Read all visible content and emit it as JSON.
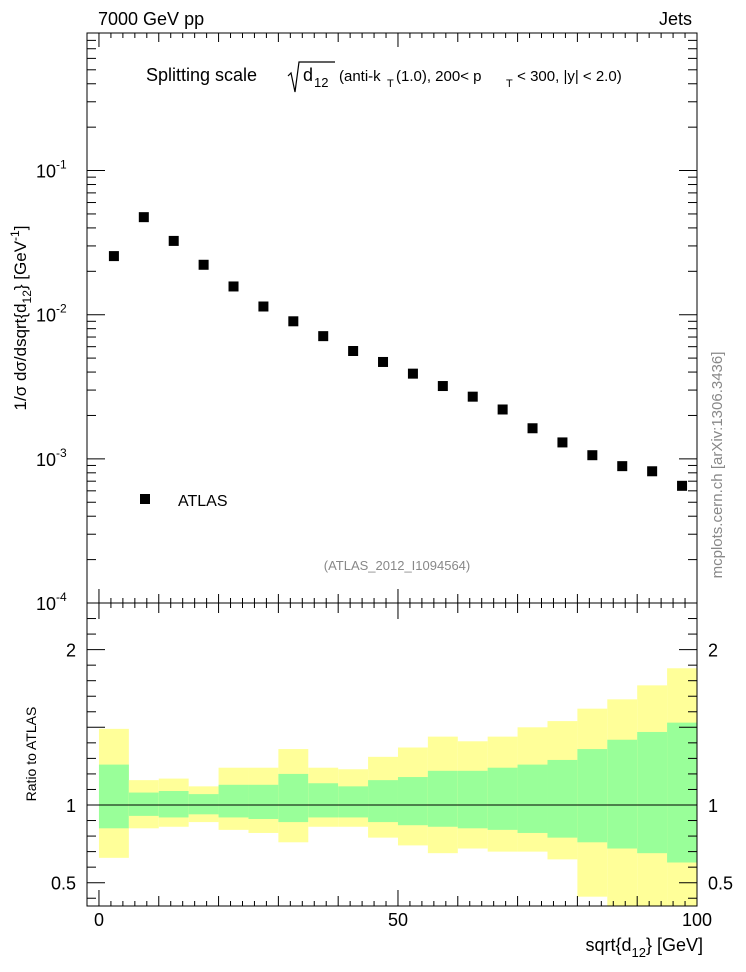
{
  "header": {
    "left": "7000 GeV pp",
    "right": "Jets"
  },
  "side_label": "mcplots.cern.ch [arXiv:1306.3436]",
  "chart_data": [
    {
      "type": "scatter",
      "title": {
        "main": "Splitting scale",
        "root_sub": "12",
        "rest": "(anti-k",
        "k_sub": "T",
        "rest2": "(1.0), 200< p",
        "p_sub": "T",
        "rest3": " < 300, |y| < 2.0)"
      },
      "ylabel": "1/σ dσ/dsqrt{d_12} [GeV^-1]",
      "yscale": "log",
      "ylim": [
        0.0001,
        0.9
      ],
      "xlim": [
        -2,
        100
      ],
      "ytick_labels": [
        {
          "base": "10",
          "exp": "-1",
          "value": 0.1
        },
        {
          "base": "10",
          "exp": "-2",
          "value": 0.01
        },
        {
          "base": "10",
          "exp": "-3",
          "value": 0.001
        },
        {
          "base": "10",
          "exp": "-4",
          "value": 0.0001
        }
      ],
      "legend": {
        "label": "ATLAS",
        "position": "lower-left"
      },
      "watermark": "(ATLAS_2012_I1094564)",
      "series": [
        {
          "name": "ATLAS",
          "marker": "square",
          "color": "#000000",
          "x": [
            2.5,
            7.5,
            12.5,
            17.5,
            22.5,
            27.5,
            32.5,
            37.5,
            42.5,
            47.5,
            52.5,
            57.5,
            62.5,
            67.5,
            72.5,
            77.5,
            82.5,
            87.5,
            92.5,
            97.5
          ],
          "y": [
            0.0255,
            0.0475,
            0.0325,
            0.0222,
            0.0157,
            0.0114,
            0.009,
            0.0071,
            0.0056,
            0.0047,
            0.0039,
            0.0032,
            0.0027,
            0.0022,
            0.00163,
            0.0013,
            0.00106,
            0.00089,
            0.00082,
            0.00065
          ]
        }
      ]
    },
    {
      "type": "area",
      "ylabel": "Ratio to ATLAS",
      "xlabel": "sqrt{d_12} [GeV]",
      "xlim": [
        -2,
        100
      ],
      "ylim": [
        0.35,
        2.3
      ],
      "xtick_labels": [
        {
          "label": "0",
          "value": 0
        },
        {
          "label": "50",
          "value": 50
        },
        {
          "label": "100",
          "value": 100
        }
      ],
      "ytick_labels": [
        {
          "label": "2",
          "value": 2
        },
        {
          "label": "1",
          "value": 1
        },
        {
          "label": "0.5",
          "value": 0.5
        }
      ],
      "reference_line": 1,
      "bin_edges": [
        0,
        5,
        10,
        15,
        20,
        25,
        30,
        35,
        40,
        45,
        50,
        55,
        60,
        65,
        70,
        75,
        80,
        85,
        90,
        95,
        100
      ],
      "bands": {
        "stat_color": "#99ff99",
        "total_color": "#ffff99",
        "stat_low": [
          0.85,
          0.93,
          0.92,
          0.94,
          0.92,
          0.91,
          0.89,
          0.92,
          0.92,
          0.89,
          0.87,
          0.86,
          0.85,
          0.84,
          0.82,
          0.79,
          0.76,
          0.72,
          0.69,
          0.63
        ],
        "stat_high": [
          1.26,
          1.08,
          1.09,
          1.07,
          1.13,
          1.13,
          1.2,
          1.14,
          1.12,
          1.16,
          1.18,
          1.22,
          1.22,
          1.24,
          1.26,
          1.29,
          1.36,
          1.42,
          1.47,
          1.53
        ],
        "total_low": [
          0.66,
          0.85,
          0.86,
          0.89,
          0.84,
          0.82,
          0.76,
          0.86,
          0.86,
          0.79,
          0.74,
          0.69,
          0.72,
          0.7,
          0.7,
          0.65,
          0.41,
          0.34,
          0.31,
          0.25
        ],
        "total_high": [
          1.49,
          1.16,
          1.17,
          1.12,
          1.24,
          1.24,
          1.36,
          1.24,
          1.23,
          1.31,
          1.37,
          1.44,
          1.41,
          1.44,
          1.5,
          1.54,
          1.62,
          1.68,
          1.77,
          1.88
        ]
      }
    }
  ]
}
